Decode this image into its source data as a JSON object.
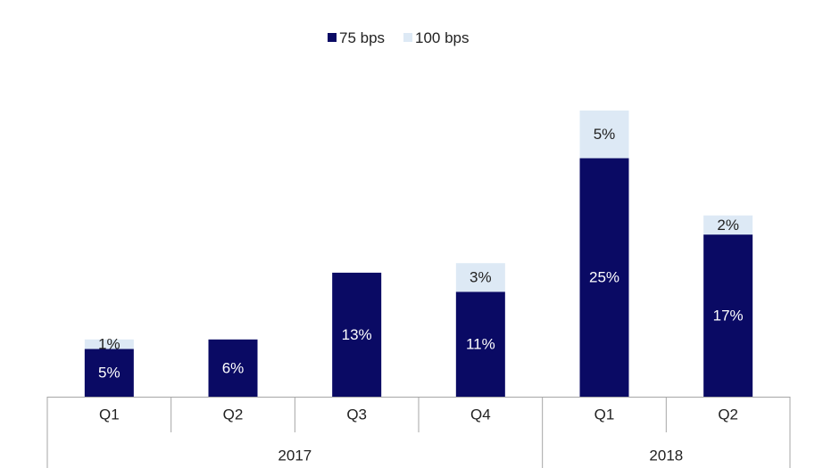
{
  "chart_data": {
    "type": "bar",
    "stacked": true,
    "title": "",
    "xlabel": "",
    "ylabel": "",
    "legend_position": "top-center",
    "grid": false,
    "categories": [
      "Q1",
      "Q2",
      "Q3",
      "Q4",
      "Q1",
      "Q2"
    ],
    "groups": [
      {
        "label": "2017",
        "span": 4
      },
      {
        "label": "2018",
        "span": 2
      }
    ],
    "series": [
      {
        "name": "75 bps",
        "color": "#0a0a64",
        "label_color": "#ffffff",
        "values": [
          5,
          6,
          13,
          11,
          25,
          17
        ],
        "labels": [
          "5%",
          "6%",
          "13%",
          "11%",
          "25%",
          "17%"
        ]
      },
      {
        "name": "100 bps",
        "color": "#dde9f5",
        "label_color": "#222222",
        "values": [
          1,
          0,
          0,
          3,
          5,
          2
        ],
        "labels": [
          "1%",
          "",
          "",
          "3%",
          "5%",
          "2%"
        ]
      }
    ],
    "ylim": [
      0,
      32
    ]
  }
}
